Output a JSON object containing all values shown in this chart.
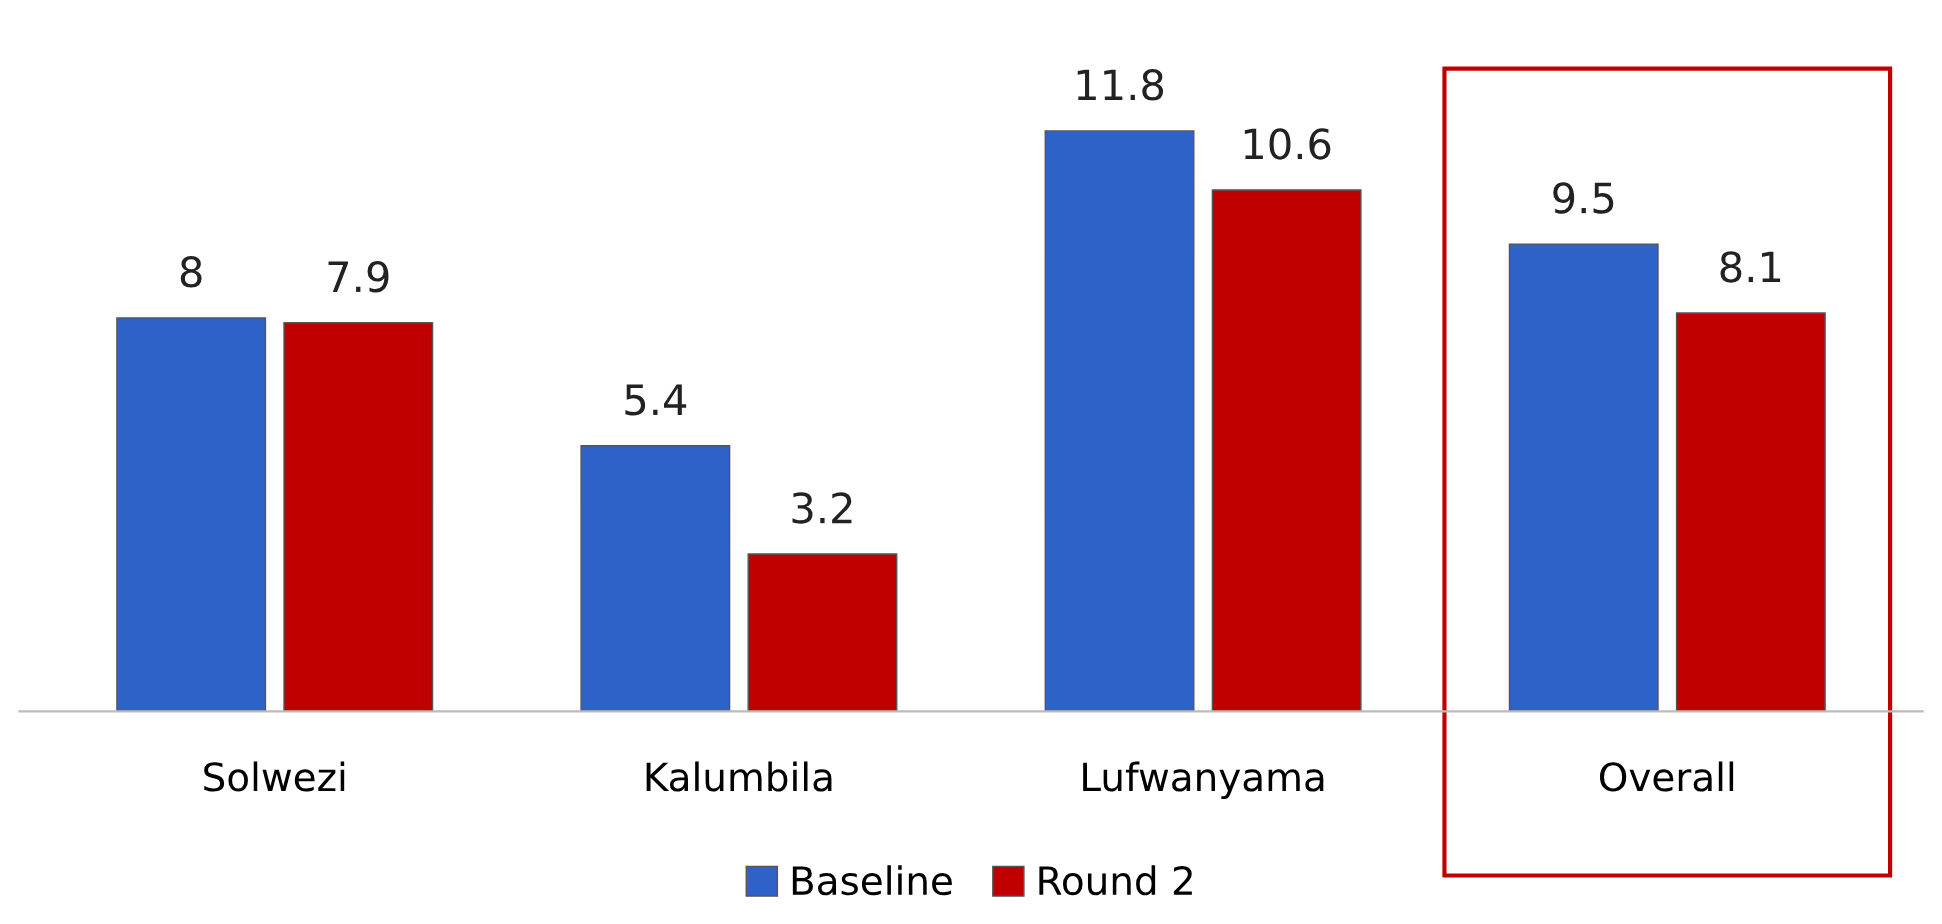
{
  "chart_data": {
    "type": "bar",
    "categories": [
      "Solwezi",
      "Kalumbila",
      "Lufwanyama",
      "Overall"
    ],
    "series": [
      {
        "name": "Baseline",
        "color": "#2f62c9",
        "values": [
          8,
          5.4,
          11.8,
          9.5
        ]
      },
      {
        "name": "Round 2",
        "color": "#c00000",
        "values": [
          7.9,
          3.2,
          10.6,
          8.1
        ]
      }
    ],
    "data_labels": true,
    "legend": "bottom",
    "grid": false
  }
}
